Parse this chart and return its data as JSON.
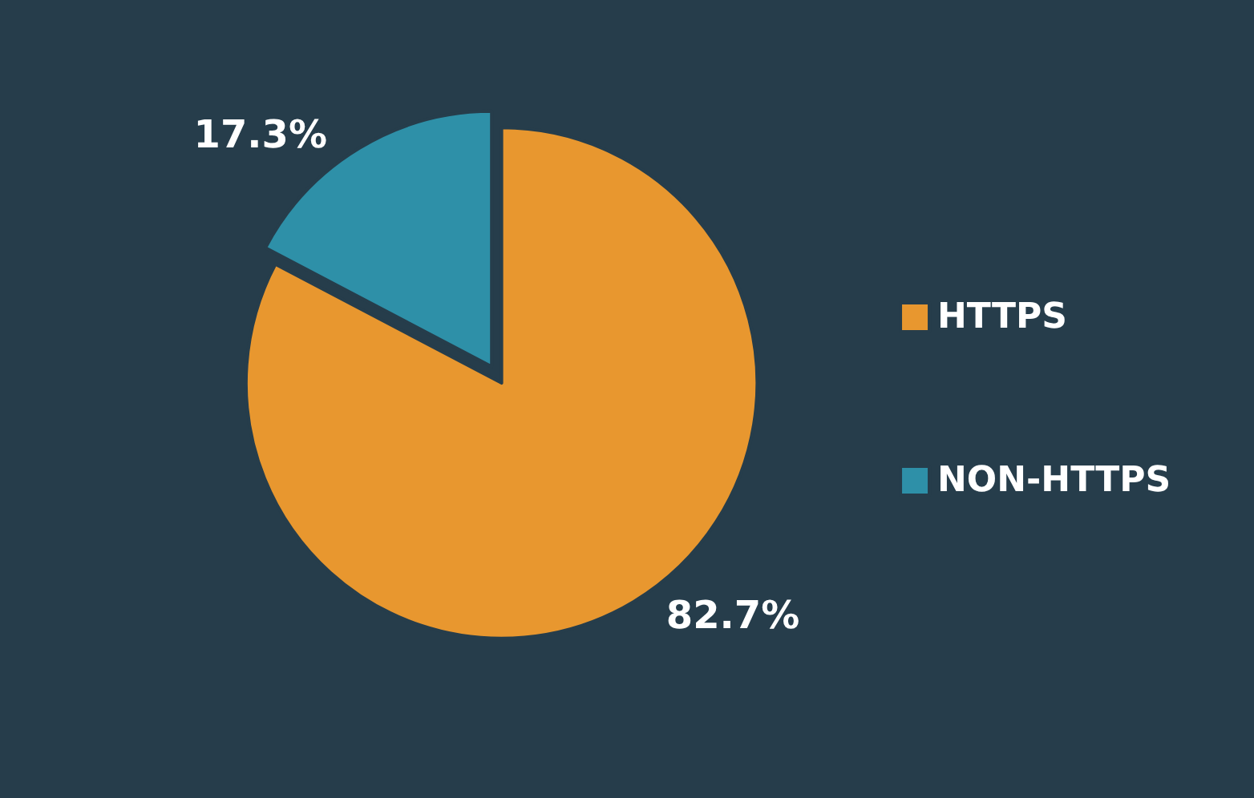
{
  "chart_data": {
    "type": "pie",
    "categories": [
      "HTTPS",
      "NON-HTTPS"
    ],
    "values": [
      82.7,
      17.3
    ],
    "colors": [
      "#e8972f",
      "#2e90a8"
    ],
    "value_labels": [
      "82.7%",
      "17.3%"
    ],
    "legend": "right"
  }
}
